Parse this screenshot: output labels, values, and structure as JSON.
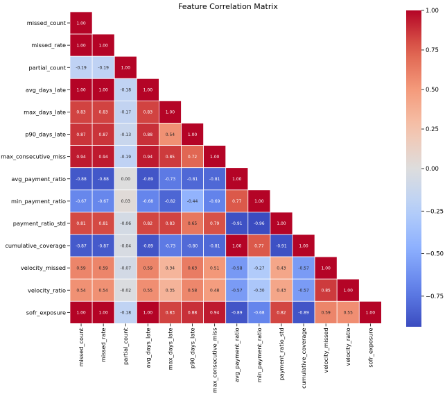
{
  "chart_data": {
    "type": "heatmap",
    "title": "Feature Correlation Matrix",
    "variables": [
      "missed_count",
      "missed_rate",
      "partial_count",
      "avg_days_late",
      "max_days_late",
      "p90_days_late",
      "max_consecutive_miss",
      "avg_payment_ratio",
      "min_payment_ratio",
      "payment_ratio_std",
      "cumulative_coverage",
      "velocity_missed",
      "velocity_ratio",
      "sofr_exposure"
    ],
    "mask": "upper triangle hidden (lower triangle incl. diagonal shown)",
    "matrix": [
      [
        "1.00"
      ],
      [
        "1.00",
        "1.00"
      ],
      [
        "-0.19",
        "-0.19",
        "1.00"
      ],
      [
        "1.00",
        "1.00",
        "-0.18",
        "1.00"
      ],
      [
        "0.83",
        "0.83",
        "-0.17",
        "0.83",
        "1.00"
      ],
      [
        "0.87",
        "0.87",
        "-0.13",
        "0.88",
        "0.54",
        "1.00"
      ],
      [
        "0.94",
        "0.94",
        "-0.19",
        "0.94",
        "0.85",
        "0.72",
        "1.00"
      ],
      [
        "-0.88",
        "-0.88",
        "0.00",
        "-0.89",
        "-0.73",
        "-0.81",
        "-0.81",
        "1.00"
      ],
      [
        "-0.67",
        "-0.67",
        "0.03",
        "-0.68",
        "-0.82",
        "-0.44",
        "-0.69",
        "0.77",
        "1.00"
      ],
      [
        "0.81",
        "0.81",
        "-0.06",
        "0.82",
        "0.83",
        "0.65",
        "0.79",
        "-0.91",
        "-0.96",
        "1.00"
      ],
      [
        "-0.87",
        "-0.87",
        "-0.04",
        "-0.89",
        "-0.73",
        "-0.80",
        "-0.81",
        "1.00",
        "0.77",
        "-0.91",
        "1.00"
      ],
      [
        "0.59",
        "0.59",
        "-0.07",
        "0.59",
        "0.34",
        "0.63",
        "0.51",
        "-0.58",
        "-0.27",
        "0.43",
        "-0.57",
        "1.00"
      ],
      [
        "0.54",
        "0.54",
        "-0.02",
        "0.55",
        "0.35",
        "0.58",
        "0.48",
        "-0.57",
        "-0.30",
        "0.43",
        "-0.57",
        "0.85",
        "1.00"
      ],
      [
        "1.00",
        "1.00",
        "-0.18",
        "1.00",
        "0.83",
        "0.88",
        "0.94",
        "-0.89",
        "-0.68",
        "0.82",
        "-0.89",
        "0.59",
        "0.55",
        "1.00"
      ]
    ],
    "colorbar": {
      "colormap": "coolwarm",
      "vmin": -0.93,
      "vmax": 1.0,
      "ticks": [
        "1.00",
        "0.75",
        "0.50",
        "0.25",
        "0.00",
        "-0.25",
        "-0.50",
        "-0.75"
      ]
    },
    "colors": {
      "low": "#3b4cc0",
      "mid": "#dddddd",
      "high": "#b40426",
      "cell_border": "#ffffff"
    }
  }
}
